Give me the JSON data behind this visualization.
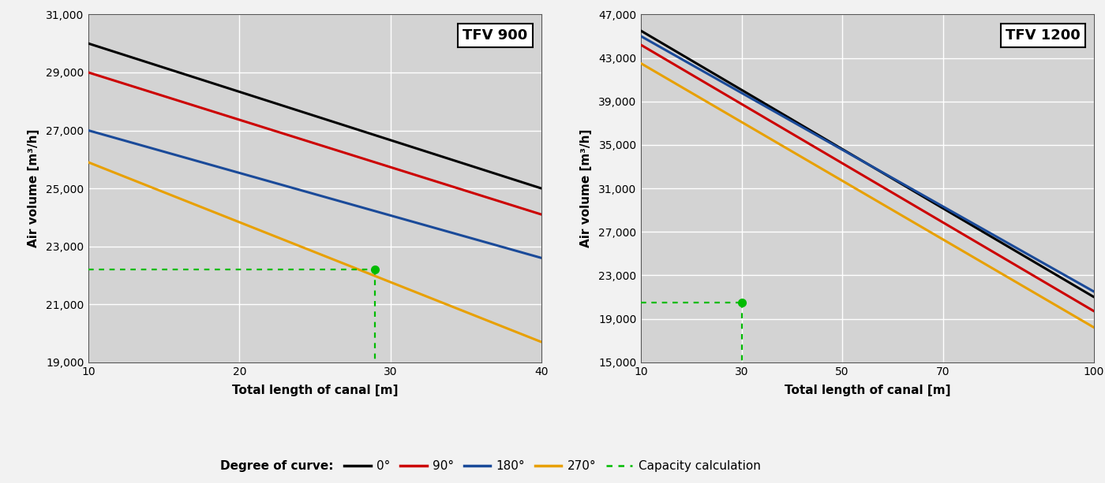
{
  "tfv900": {
    "title": "TFV 900",
    "xlim": [
      10,
      40
    ],
    "ylim": [
      19000,
      31000
    ],
    "xticks": [
      10,
      20,
      30,
      40
    ],
    "yticks": [
      19000,
      21000,
      23000,
      25000,
      27000,
      29000,
      31000
    ],
    "xlabel": "Total length of canal [m]",
    "ylabel": "Air volume [m³/h]",
    "curves": {
      "0deg": {
        "x": [
          10,
          40
        ],
        "y": [
          30000,
          25000
        ],
        "color": "#000000",
        "lw": 2.2
      },
      "90deg": {
        "x": [
          10,
          40
        ],
        "y": [
          29000,
          24100
        ],
        "color": "#cc0000",
        "lw": 2.2
      },
      "180deg": {
        "x": [
          10,
          40
        ],
        "y": [
          27000,
          22600
        ],
        "color": "#1a4a99",
        "lw": 2.2
      },
      "270deg": {
        "x": [
          10,
          40
        ],
        "y": [
          25900,
          19700
        ],
        "color": "#e8a000",
        "lw": 2.2
      }
    },
    "marker_x": 29,
    "marker_y": 22200
  },
  "tfv1200": {
    "title": "TFV 1200",
    "xlim": [
      10,
      100
    ],
    "ylim": [
      15000,
      47000
    ],
    "xticks": [
      10,
      30,
      50,
      70,
      100
    ],
    "yticks": [
      15000,
      19000,
      23000,
      27000,
      31000,
      35000,
      39000,
      43000,
      47000
    ],
    "xlabel": "Total length of canal [m]",
    "ylabel": "Air volume [m³/h]",
    "curves": {
      "0deg": {
        "x": [
          10,
          100
        ],
        "y": [
          45500,
          21000
        ],
        "color": "#000000",
        "lw": 2.2
      },
      "90deg": {
        "x": [
          10,
          100
        ],
        "y": [
          44200,
          19700
        ],
        "color": "#cc0000",
        "lw": 2.2
      },
      "180deg": {
        "x": [
          10,
          100
        ],
        "y": [
          45000,
          21500
        ],
        "color": "#1a4a99",
        "lw": 2.2
      },
      "270deg": {
        "x": [
          10,
          100
        ],
        "y": [
          42500,
          18200
        ],
        "color": "#e8a000",
        "lw": 2.2
      }
    },
    "marker_x": 30,
    "marker_y": 20500
  },
  "legend": {
    "prefix": "Degree of curve:",
    "labels": [
      "0°",
      "90°",
      "180°",
      "270°",
      "Capacity calculation"
    ],
    "colors": [
      "#000000",
      "#cc0000",
      "#1a4a99",
      "#e8a000",
      "#00bb00"
    ],
    "styles": [
      "-",
      "-",
      "-",
      "-",
      ":"
    ],
    "lws": [
      2.5,
      2.5,
      2.5,
      2.5,
      1.8
    ]
  },
  "bg_color": "#d3d3d3",
  "grid_color": "#ffffff",
  "fig_bg": "#f2f2f2"
}
